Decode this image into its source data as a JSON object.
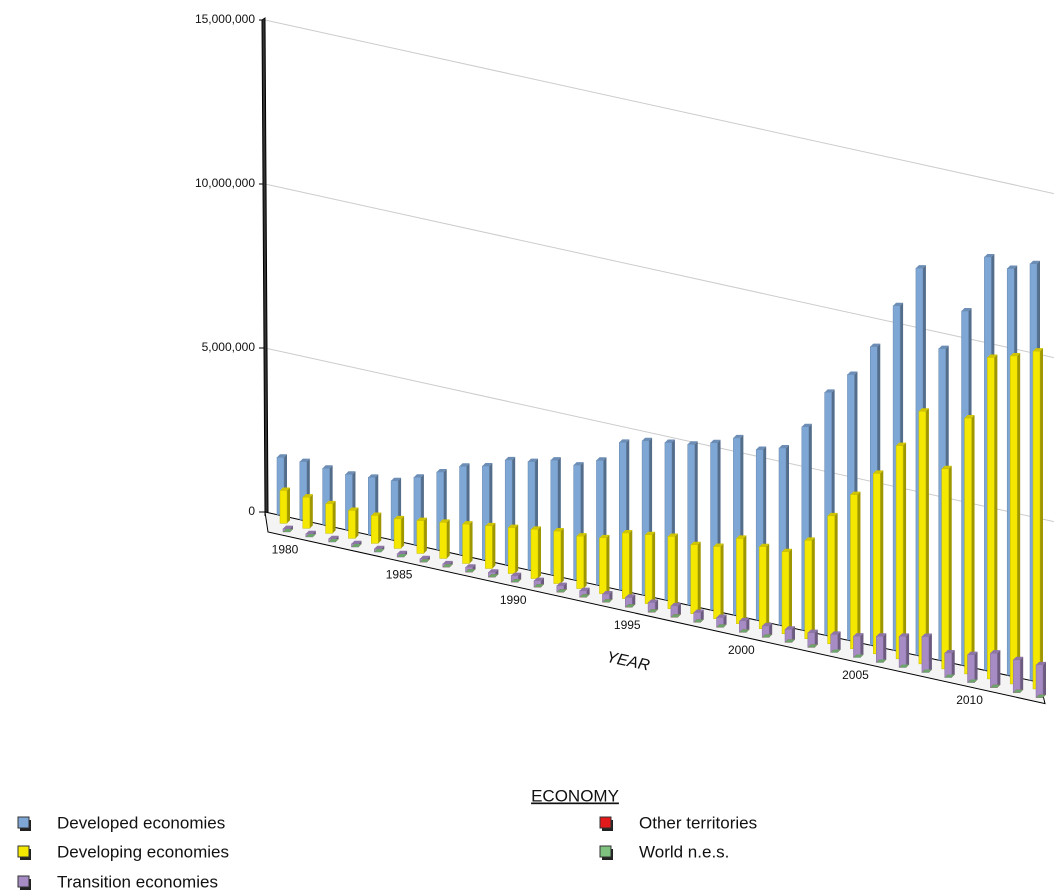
{
  "chart_data": {
    "type": "bar3d",
    "x_label": "YEAR",
    "legend_title": "ECONOMY",
    "categories": [
      1980,
      null,
      null,
      null,
      null,
      1985,
      null,
      null,
      null,
      null,
      1990,
      null,
      null,
      null,
      null,
      1995,
      null,
      null,
      null,
      null,
      2000,
      null,
      null,
      null,
      null,
      2005,
      null,
      null,
      null,
      null,
      2010,
      null,
      null,
      null
    ],
    "series": [
      {
        "name": "Developed economies",
        "color": "#7fa7d6",
        "values": [
          1750000,
          1770000,
          1720000,
          1690000,
          1750000,
          1800000,
          2060000,
          2370000,
          2700000,
          2860000,
          3200000,
          3300000,
          3500000,
          3500000,
          3800000,
          4500000,
          4700000,
          4800000,
          4900000,
          5100000,
          5400000,
          5200000,
          5400000,
          6200000,
          7400000,
          8100000,
          9100000,
          10500000,
          11800000,
          9500000,
          10800000,
          12600000,
          12400000,
          12700000
        ]
      },
      {
        "name": "Developing economies",
        "color": "#f5e800",
        "values": [
          1000000,
          950000,
          900000,
          850000,
          850000,
          900000,
          1000000,
          1100000,
          1200000,
          1300000,
          1400000,
          1500000,
          1600000,
          1600000,
          1700000,
          2000000,
          2100000,
          2200000,
          2100000,
          2200000,
          2600000,
          2500000,
          2500000,
          3000000,
          3900000,
          4700000,
          5500000,
          6500000,
          7700000,
          6100000,
          7800000,
          9800000,
          10000000,
          10300000
        ]
      },
      {
        "name": "Transition economies",
        "color": "#a68bc4",
        "values": [
          100000,
          100000,
          100000,
          100000,
          100000,
          100000,
          100000,
          100000,
          150000,
          150000,
          200000,
          200000,
          200000,
          200000,
          250000,
          300000,
          300000,
          350000,
          300000,
          300000,
          350000,
          350000,
          400000,
          450000,
          550000,
          650000,
          800000,
          950000,
          1100000,
          750000,
          850000,
          1050000,
          1000000,
          1000000
        ]
      },
      {
        "name": "Other territories",
        "color": "#e31a1c",
        "values": [
          0,
          0,
          0,
          0,
          0,
          0,
          0,
          0,
          0,
          0,
          0,
          0,
          0,
          0,
          0,
          0,
          0,
          0,
          0,
          0,
          0,
          0,
          0,
          0,
          0,
          0,
          0,
          0,
          0,
          0,
          0,
          0,
          0,
          0
        ]
      },
      {
        "name": "World n.e.s.",
        "color": "#7fc27f",
        "values": [
          0,
          0,
          0,
          0,
          0,
          0,
          0,
          0,
          0,
          0,
          0,
          0,
          0,
          0,
          0,
          0,
          0,
          0,
          0,
          0,
          0,
          0,
          0,
          0,
          0,
          0,
          0,
          0,
          0,
          0,
          0,
          0,
          0,
          0
        ]
      }
    ],
    "ylim": [
      0,
      15000000
    ],
    "yticks": [
      0,
      {
        "value": 5000000,
        "label": "5,000,000"
      },
      {
        "value": 10000000,
        "label": "10,000,000"
      },
      {
        "value": 15000000,
        "label": "15,000,000"
      }
    ],
    "grid": true
  }
}
